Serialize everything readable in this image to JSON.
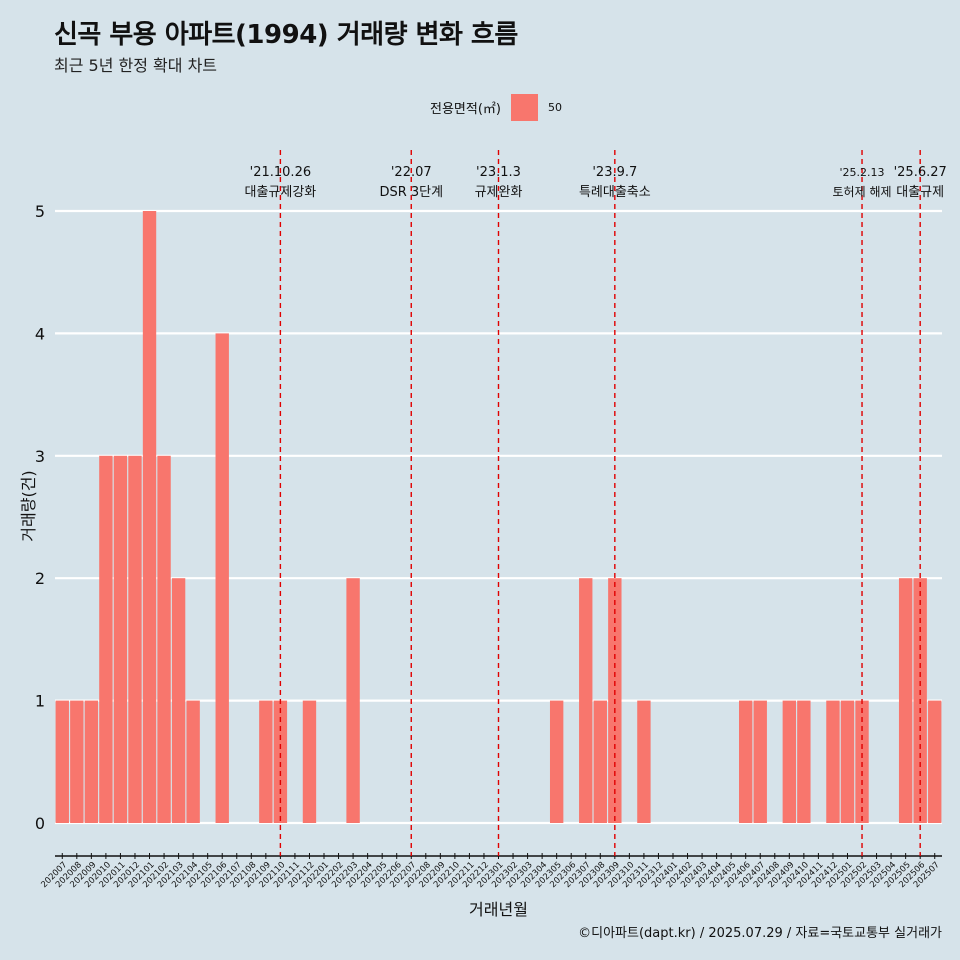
{
  "title": "신곡 부용 아파트(1994) 거래량 변화 흐름",
  "subtitle": "최근 5년 한정 확대 차트",
  "legend": {
    "title": "전용면적(㎡)",
    "items": [
      {
        "label": "50",
        "color": "#f8766d"
      }
    ]
  },
  "caption": "©디아파트(dapt.kr) / 2025.07.29 / 자료=국토교통부 실거래가",
  "colors": {
    "background": "#d6e3ea",
    "bar": "#f8766d",
    "gridline": "#ffffff",
    "event_line": "#e00000"
  },
  "chart_data": {
    "type": "bar",
    "xlabel": "거래년월",
    "ylabel": "거래량(건)",
    "ylim": [
      0,
      5
    ],
    "yticks": [
      0,
      1,
      2,
      3,
      4,
      5
    ],
    "grid": true,
    "legend_position": "top",
    "categories": [
      "202007",
      "202008",
      "202009",
      "202010",
      "202011",
      "202012",
      "202101",
      "202102",
      "202103",
      "202104",
      "202105",
      "202106",
      "202107",
      "202108",
      "202109",
      "202110",
      "202111",
      "202112",
      "202201",
      "202202",
      "202203",
      "202204",
      "202205",
      "202206",
      "202207",
      "202208",
      "202209",
      "202210",
      "202211",
      "202212",
      "202301",
      "202302",
      "202303",
      "202304",
      "202305",
      "202306",
      "202307",
      "202308",
      "202309",
      "202310",
      "202311",
      "202312",
      "202401",
      "202402",
      "202403",
      "202404",
      "202405",
      "202406",
      "202407",
      "202408",
      "202409",
      "202410",
      "202411",
      "202412",
      "202501",
      "202502",
      "202503",
      "202504",
      "202505",
      "202506",
      "202507"
    ],
    "series": [
      {
        "name": "50",
        "values": [
          1,
          1,
          1,
          3,
          3,
          3,
          5,
          3,
          2,
          1,
          0,
          4,
          0,
          0,
          1,
          1,
          0,
          1,
          0,
          0,
          2,
          0,
          0,
          0,
          0,
          0,
          0,
          0,
          0,
          0,
          0,
          0,
          0,
          0,
          1,
          0,
          2,
          1,
          2,
          0,
          1,
          0,
          0,
          0,
          0,
          0,
          0,
          1,
          1,
          0,
          1,
          1,
          0,
          1,
          1,
          1,
          0,
          0,
          2,
          2,
          1
        ]
      }
    ],
    "annotations": [
      {
        "x": "202110",
        "date": "'21.10.26",
        "label": "대출규제강화"
      },
      {
        "x": "202207",
        "date": "'22.07",
        "label": "DSR 3단계"
      },
      {
        "x": "202301",
        "date": "'23.1.3",
        "label": "규제완화"
      },
      {
        "x": "202309",
        "date": "'23.9.7",
        "label": "특례대출축소"
      },
      {
        "x": "202502",
        "date": "'25.2.13",
        "label": "토허제 해제"
      },
      {
        "x": "202506",
        "date": "'25.6.27",
        "label": "대출규제"
      }
    ]
  }
}
